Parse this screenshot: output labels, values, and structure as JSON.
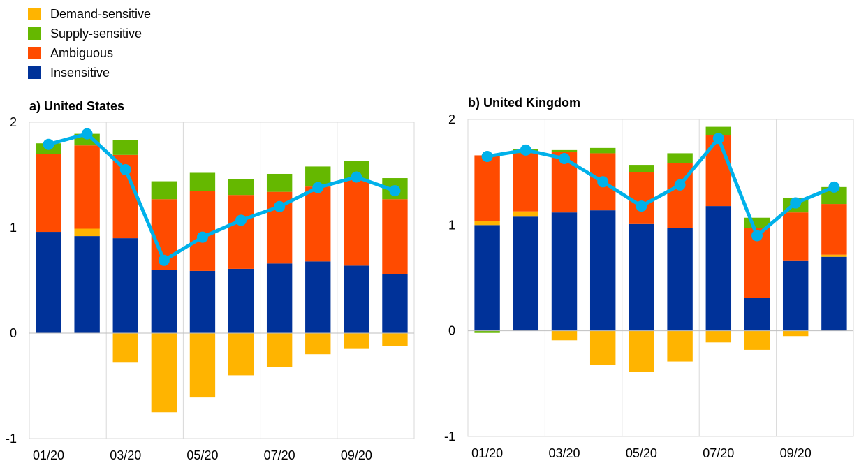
{
  "legend": [
    {
      "label": "Demand-sensitive",
      "color": "#FFB400"
    },
    {
      "label": "Supply-sensitive",
      "color": "#65B800"
    },
    {
      "label": "Ambiguous",
      "color": "#FF4B00"
    },
    {
      "label": "Insensitive",
      "color": "#003299"
    }
  ],
  "line_color": "#00B1EA",
  "chart_data": [
    {
      "type": "bar",
      "stacked": true,
      "title": "a) United States",
      "categories": [
        "01/20",
        "02/20",
        "03/20",
        "04/20",
        "05/20",
        "06/20",
        "07/20",
        "08/20",
        "09/20",
        "10/20"
      ],
      "x_tick_labels": [
        "01/20",
        "03/20",
        "05/20",
        "07/20",
        "09/20"
      ],
      "ylim": [
        -1,
        2
      ],
      "yticks": [
        2,
        1,
        0,
        -1
      ],
      "grid": "vertical",
      "series": [
        {
          "name": "Insensitive",
          "values": [
            0.96,
            0.92,
            0.9,
            0.6,
            0.59,
            0.61,
            0.66,
            0.68,
            0.64,
            0.56
          ]
        },
        {
          "name": "Demand-sensitive",
          "values": [
            0.0,
            0.07,
            -0.28,
            -0.75,
            -0.61,
            -0.4,
            -0.32,
            -0.2,
            -0.15,
            -0.12
          ]
        },
        {
          "name": "Ambiguous",
          "values": [
            0.74,
            0.79,
            0.79,
            0.67,
            0.76,
            0.7,
            0.68,
            0.71,
            0.82,
            0.71
          ]
        },
        {
          "name": "Supply-sensitive",
          "values": [
            0.1,
            0.11,
            0.14,
            0.17,
            0.17,
            0.15,
            0.17,
            0.19,
            0.17,
            0.2
          ]
        }
      ],
      "line": [
        1.79,
        1.89,
        1.55,
        0.69,
        0.91,
        1.07,
        1.2,
        1.38,
        1.48,
        1.35
      ]
    },
    {
      "type": "bar",
      "stacked": true,
      "title": "b) United Kingdom",
      "categories": [
        "01/20",
        "02/20",
        "03/20",
        "04/20",
        "05/20",
        "06/20",
        "07/20",
        "08/20",
        "09/20",
        "10/20"
      ],
      "x_tick_labels": [
        "01/20",
        "03/20",
        "05/20",
        "07/20",
        "09/20"
      ],
      "ylim": [
        -1,
        2
      ],
      "yticks": [
        2,
        1,
        0,
        -1
      ],
      "grid": "vertical",
      "series": [
        {
          "name": "Insensitive",
          "values": [
            1.0,
            1.08,
            1.12,
            1.14,
            1.01,
            0.97,
            1.18,
            0.31,
            0.66,
            0.7
          ]
        },
        {
          "name": "Demand-sensitive",
          "values": [
            0.04,
            0.05,
            -0.09,
            -0.32,
            -0.39,
            -0.29,
            -0.11,
            -0.18,
            -0.05,
            0.02
          ]
        },
        {
          "name": "Ambiguous",
          "values": [
            0.62,
            0.55,
            0.57,
            0.54,
            0.49,
            0.62,
            0.67,
            0.66,
            0.46,
            0.48
          ]
        },
        {
          "name": "Supply-sensitive",
          "values": [
            0.0,
            0.04,
            0.02,
            0.05,
            0.07,
            0.09,
            0.08,
            0.1,
            0.14,
            0.16
          ]
        }
      ],
      "supply_negative": [
        -0.02,
        0,
        0,
        0,
        0,
        0,
        0,
        0,
        0,
        0
      ],
      "line": [
        1.65,
        1.71,
        1.63,
        1.41,
        1.18,
        1.38,
        1.82,
        0.9,
        1.21,
        1.36
      ]
    }
  ]
}
